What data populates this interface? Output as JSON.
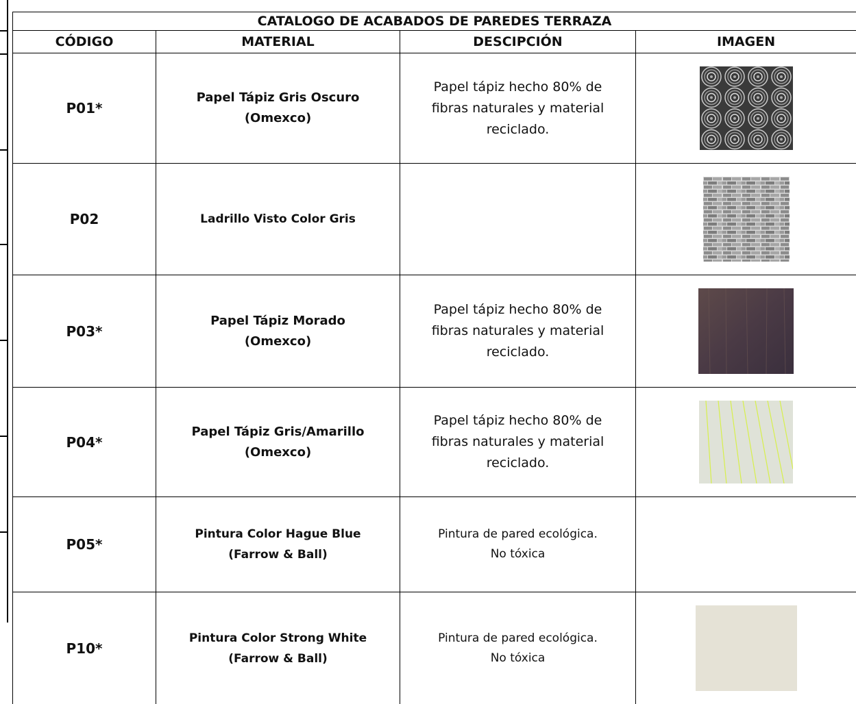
{
  "header": {
    "title": "CATALOGO DE ACABADOS DE PAREDES TERRAZA"
  },
  "table": {
    "columns": [
      "CÓDIGO",
      "MATERIAL",
      "DESCIPCIÓN",
      "IMAGEN"
    ],
    "rows": [
      {
        "code": "P01*",
        "material": "Papel Tápiz Gris Oscuro\n(Omexco)",
        "description": "Papel tápiz hecho 80% de\nfibras naturales y material\nreciclado."
      },
      {
        "code": "P02",
        "material": "Ladrillo Visto Color Gris"
      },
      {
        "code": "P03*",
        "material": "Papel Tápiz Morado\n(Omexco)",
        "description": "Papel tápiz hecho 80% de\nfibras naturales y material\nreciclado."
      },
      {
        "code": "P04*",
        "material": "Papel Tápiz Gris/Amarillo\n(Omexco)",
        "description": "Papel tápiz hecho 80% de\nfibras naturales y material\nreciclado."
      },
      {
        "code": "P05*",
        "material": "Pintura Color Hague Blue\n(Farrow & Ball)",
        "description": "Pintura de pared ecológica.\nNo tóxica"
      },
      {
        "code": "P10*",
        "material": "Pintura Color Strong White\n(Farrow & Ball)",
        "description": "Pintura de pared ecológica.\nNo tóxica"
      }
    ]
  }
}
